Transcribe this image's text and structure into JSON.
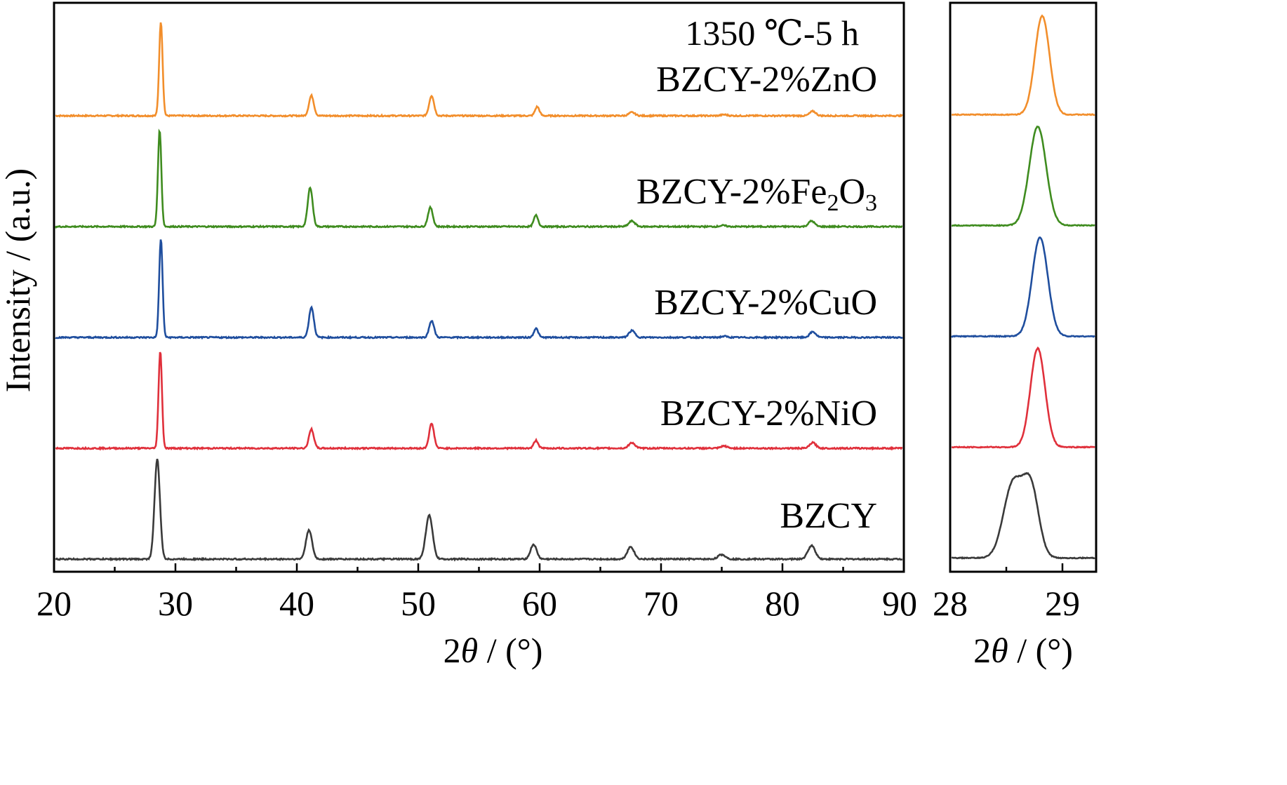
{
  "chart_data": [
    {
      "type": "line",
      "xlabel_prefix": "2",
      "xlabel_symbol": "θ",
      "xlabel_suffix": " / (°)",
      "ylabel": "Intensity / (a.u.)",
      "xlim": [
        20,
        90
      ],
      "x_ticks": [
        "20",
        "30",
        "40",
        "50",
        "60",
        "70",
        "80",
        "90"
      ],
      "x_minor_step": 5,
      "y_ticks_shown": false,
      "annotation": "1350 ℃-5 h",
      "series": [
        {
          "name": "BZCY-2%ZnO",
          "color": "#F28E2B",
          "offset": 4,
          "peaks": [
            {
              "x": 28.8,
              "h": 0.84,
              "w": 0.14
            },
            {
              "x": 41.2,
              "h": 0.18,
              "w": 0.2
            },
            {
              "x": 51.1,
              "h": 0.18,
              "w": 0.2
            },
            {
              "x": 59.8,
              "h": 0.08,
              "w": 0.18
            },
            {
              "x": 67.6,
              "h": 0.03,
              "w": 0.25
            },
            {
              "x": 75.2,
              "h": 0.01,
              "w": 0.25
            },
            {
              "x": 82.5,
              "h": 0.04,
              "w": 0.25
            }
          ]
        },
        {
          "name": "BZCY-2%Fe2O3",
          "label_parts": [
            "BZCY-2%Fe",
            "2",
            "O",
            "3"
          ],
          "color": "#3F8C1F",
          "offset": 3,
          "peaks": [
            {
              "x": 28.7,
              "h": 0.86,
              "w": 0.14
            },
            {
              "x": 41.1,
              "h": 0.35,
              "w": 0.2
            },
            {
              "x": 51.0,
              "h": 0.17,
              "w": 0.2
            },
            {
              "x": 59.7,
              "h": 0.1,
              "w": 0.18
            },
            {
              "x": 67.6,
              "h": 0.05,
              "w": 0.25
            },
            {
              "x": 75.1,
              "h": 0.01,
              "w": 0.25
            },
            {
              "x": 82.4,
              "h": 0.05,
              "w": 0.25
            }
          ]
        },
        {
          "name": "BZCY-2%CuO",
          "color": "#1F4E9E",
          "offset": 2,
          "peaks": [
            {
              "x": 28.8,
              "h": 0.88,
              "w": 0.14
            },
            {
              "x": 41.2,
              "h": 0.27,
              "w": 0.2
            },
            {
              "x": 51.1,
              "h": 0.15,
              "w": 0.2
            },
            {
              "x": 59.7,
              "h": 0.08,
              "w": 0.18
            },
            {
              "x": 67.6,
              "h": 0.06,
              "w": 0.25
            },
            {
              "x": 75.2,
              "h": 0.01,
              "w": 0.25
            },
            {
              "x": 82.5,
              "h": 0.05,
              "w": 0.25
            }
          ]
        },
        {
          "name": "BZCY-2%NiO",
          "color": "#E0303B",
          "offset": 1,
          "peaks": [
            {
              "x": 28.75,
              "h": 0.87,
              "w": 0.14
            },
            {
              "x": 41.2,
              "h": 0.17,
              "w": 0.2
            },
            {
              "x": 51.1,
              "h": 0.22,
              "w": 0.2
            },
            {
              "x": 59.7,
              "h": 0.07,
              "w": 0.18
            },
            {
              "x": 67.6,
              "h": 0.05,
              "w": 0.25
            },
            {
              "x": 75.2,
              "h": 0.02,
              "w": 0.25
            },
            {
              "x": 82.5,
              "h": 0.05,
              "w": 0.25
            }
          ]
        },
        {
          "name": "BZCY",
          "color": "#3A3A3A",
          "offset": 0,
          "peaks": [
            {
              "x": 28.5,
              "h": 0.89,
              "w": 0.22
            },
            {
              "x": 41.0,
              "h": 0.26,
              "w": 0.25
            },
            {
              "x": 50.9,
              "h": 0.39,
              "w": 0.28
            },
            {
              "x": 59.5,
              "h": 0.13,
              "w": 0.25
            },
            {
              "x": 67.5,
              "h": 0.11,
              "w": 0.28
            },
            {
              "x": 75.0,
              "h": 0.04,
              "w": 0.3
            },
            {
              "x": 82.4,
              "h": 0.12,
              "w": 0.3
            }
          ]
        }
      ]
    },
    {
      "type": "line",
      "xlabel_prefix": "2",
      "xlabel_symbol": "θ",
      "xlabel_suffix": " / (°)",
      "xlim": [
        28,
        29.3
      ],
      "x_ticks": [
        "28",
        "29"
      ],
      "series": [
        {
          "name": "BZCY-2%ZnO",
          "color": "#F28E2B",
          "offset": 4,
          "peak_x": 28.82,
          "h": 0.88,
          "w": 0.065,
          "base": 0.01
        },
        {
          "name": "BZCY-2%Fe2O3",
          "color": "#3F8C1F",
          "offset": 3,
          "peak_x": 28.78,
          "h": 0.88,
          "w": 0.075,
          "base": 0.01
        },
        {
          "name": "BZCY-2%CuO",
          "color": "#1F4E9E",
          "offset": 2,
          "peak_x": 28.8,
          "h": 0.88,
          "w": 0.07,
          "base": 0.01
        },
        {
          "name": "BZCY-2%NiO",
          "color": "#E0303B",
          "offset": 1,
          "peak_x": 28.78,
          "h": 0.88,
          "w": 0.065,
          "base": 0.01
        },
        {
          "name": "BZCY",
          "color": "#3A3A3A",
          "offset": 0,
          "peak_x": 28.6,
          "h": 0.88,
          "w": 0.12,
          "base": 0.01,
          "doublet": true
        }
      ]
    }
  ]
}
